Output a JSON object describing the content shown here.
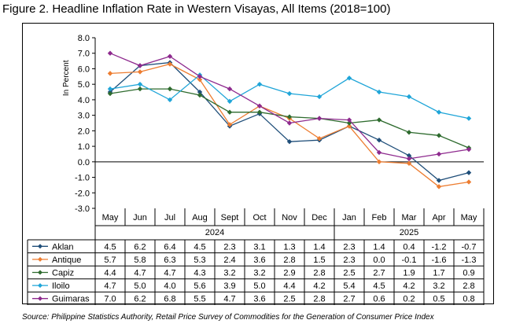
{
  "title": "Figure 2. Headline Inflation Rate in Western Visayas, All Items (2018=100)",
  "source": "Source: Philippine Statistics Authority, Retail Price Survey of Commodities for the Generation of Consumer Price Index",
  "chart_data": {
    "type": "line",
    "ylabel": "In Percent",
    "ylim": [
      -3.0,
      8.0
    ],
    "yticks": [
      "8.0",
      "7.0",
      "6.0",
      "5.0",
      "4.0",
      "3.0",
      "2.0",
      "1.0",
      "0.0",
      "-1.0",
      "-2.0",
      "-3.0"
    ],
    "categories": [
      "May",
      "Jun",
      "Jul",
      "Aug",
      "Sept",
      "Oct",
      "Nov",
      "Dec",
      "Jan",
      "Feb",
      "Mar",
      "Apr",
      "May"
    ],
    "years": [
      {
        "label": "2024",
        "span": 8
      },
      {
        "label": "2025",
        "span": 5
      }
    ],
    "grid": false,
    "legend": "data-table",
    "series": [
      {
        "name": "Aklan",
        "color": "#1f4e79",
        "values": [
          4.5,
          6.2,
          6.4,
          4.5,
          2.3,
          3.1,
          1.3,
          1.4,
          2.3,
          1.4,
          0.4,
          -1.2,
          -0.7
        ],
        "labels": [
          "4.5",
          "6.2",
          "6.4",
          "4.5",
          "2.3",
          "3.1",
          "1.3",
          "1.4",
          "2.3",
          "1.4",
          "0.4",
          "-1.2",
          "-0.7"
        ]
      },
      {
        "name": "Antique",
        "color": "#ed7d31",
        "values": [
          5.7,
          5.8,
          6.3,
          5.3,
          2.4,
          3.6,
          2.8,
          1.5,
          2.3,
          0.0,
          -0.1,
          -1.6,
          -1.3
        ],
        "labels": [
          "5.7",
          "5.8",
          "6.3",
          "5.3",
          "2.4",
          "3.6",
          "2.8",
          "1.5",
          "2.3",
          "0.0",
          "-0.1",
          "-1.6",
          "-1.3"
        ]
      },
      {
        "name": "Capiz",
        "color": "#2e6b2e",
        "values": [
          4.4,
          4.7,
          4.7,
          4.3,
          3.2,
          3.2,
          2.9,
          2.8,
          2.5,
          2.7,
          1.9,
          1.7,
          0.9
        ],
        "labels": [
          "4.4",
          "4.7",
          "4.7",
          "4.3",
          "3.2",
          "3.2",
          "2.9",
          "2.8",
          "2.5",
          "2.7",
          "1.9",
          "1.7",
          "0.9"
        ]
      },
      {
        "name": "Iloilo",
        "color": "#1fa5d8",
        "values": [
          4.7,
          5.0,
          4.0,
          5.6,
          3.9,
          5.0,
          4.4,
          4.2,
          5.4,
          4.5,
          4.2,
          3.2,
          2.8
        ],
        "labels": [
          "4.7",
          "5.0",
          "4.0",
          "5.6",
          "3.9",
          "5.0",
          "4.4",
          "4.2",
          "5.4",
          "4.5",
          "4.2",
          "3.2",
          "2.8"
        ]
      },
      {
        "name": "Guimaras",
        "color": "#8e2a8e",
        "values": [
          7.0,
          6.2,
          6.8,
          5.5,
          4.7,
          3.6,
          2.5,
          2.8,
          2.7,
          0.6,
          0.2,
          0.5,
          0.8
        ],
        "labels": [
          "7.0",
          "6.2",
          "6.8",
          "5.5",
          "4.7",
          "3.6",
          "2.5",
          "2.8",
          "2.7",
          "0.6",
          "0.2",
          "0.5",
          "0.8"
        ]
      }
    ]
  }
}
